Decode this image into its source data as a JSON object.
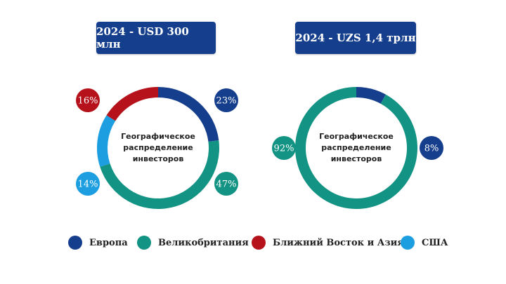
{
  "colors": {
    "europe": "#153e8c",
    "uk": "#139383",
    "middle_east_asia": "#b5121b",
    "usa": "#1c9ee0"
  },
  "legend": [
    {
      "label": "Европа",
      "color_key": "europe"
    },
    {
      "label": "Великобритания",
      "color_key": "uk"
    },
    {
      "label": "Ближний Восток и Азия",
      "color_key": "middle_east_asia"
    },
    {
      "label": "США",
      "color_key": "usa"
    }
  ],
  "chart_data": [
    {
      "type": "pie",
      "title": "2024 - USD 300 млн",
      "center_label": [
        "Географическое",
        "распределение",
        "инвесторов"
      ],
      "slices": [
        {
          "name": "Европа",
          "value": 23,
          "label": "23%",
          "color_key": "europe"
        },
        {
          "name": "Великобритания",
          "value": 47,
          "label": "47%",
          "color_key": "uk"
        },
        {
          "name": "США",
          "value": 14,
          "label": "14%",
          "color_key": "usa"
        },
        {
          "name": "Ближний Восток и Азия",
          "value": 16,
          "label": "16%",
          "color_key": "middle_east_asia"
        }
      ]
    },
    {
      "type": "pie",
      "title": "2024 - UZS 1,4 трлн",
      "center_label": [
        "Географическое",
        "распределение",
        "инвесторов"
      ],
      "slices": [
        {
          "name": "Европа",
          "value": 8,
          "label": "8%",
          "color_key": "europe"
        },
        {
          "name": "Великобритания",
          "value": 92,
          "label": "92%",
          "color_key": "uk"
        }
      ]
    }
  ]
}
